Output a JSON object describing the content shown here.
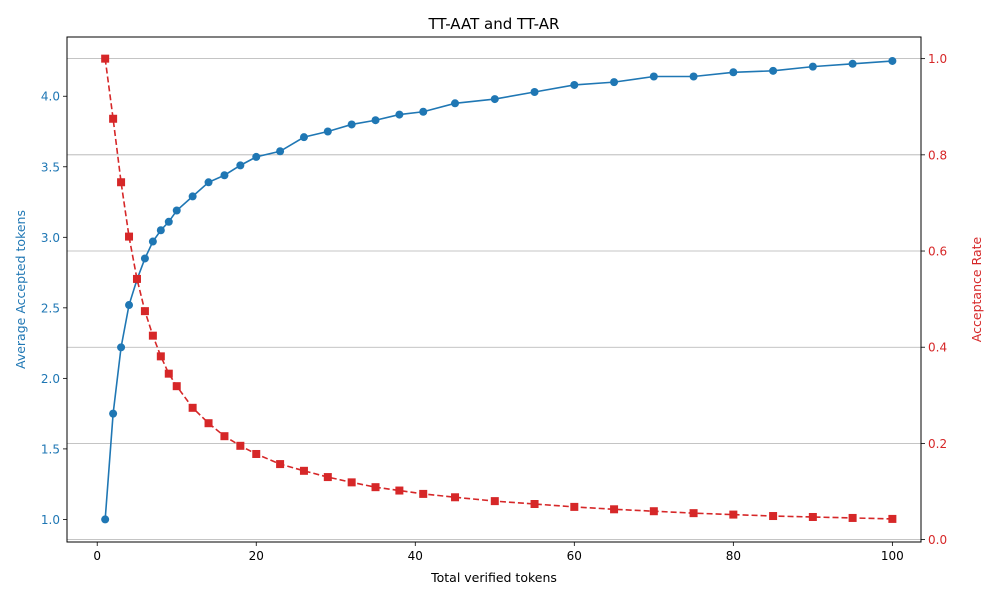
{
  "chart_data": {
    "type": "line",
    "title": "TT-AAT and TT-AR",
    "xlabel": "Total verified tokens",
    "x_ticks": [
      0,
      20,
      40,
      60,
      80,
      100
    ],
    "xlim": [
      -3.8,
      103.6
    ],
    "grid": "horizontal lines from right axis",
    "x": [
      1,
      2,
      3,
      4,
      5,
      6,
      7,
      8,
      9,
      10,
      12,
      14,
      16,
      18,
      20,
      23,
      26,
      29,
      32,
      35,
      38,
      41,
      45,
      50,
      55,
      60,
      65,
      70,
      75,
      80,
      85,
      90,
      95,
      100
    ],
    "series": [
      {
        "name": "",
        "axis": "left",
        "ylabel": "Average Accepted tokens",
        "color": "#1f77b4",
        "linestyle": "solid",
        "marker": "circle",
        "ylim": [
          0.84,
          4.42
        ],
        "y_ticks": [
          "1.0",
          "1.5",
          "2.0",
          "2.5",
          "3.0",
          "3.5",
          "4.0"
        ],
        "y_tick_values": [
          1.0,
          1.5,
          2.0,
          2.5,
          3.0,
          3.5,
          4.0
        ],
        "values": [
          1.0,
          1.75,
          2.22,
          2.52,
          2.7,
          2.85,
          2.97,
          3.05,
          3.11,
          3.19,
          3.29,
          3.39,
          3.44,
          3.51,
          3.57,
          3.61,
          3.71,
          3.75,
          3.8,
          3.83,
          3.87,
          3.89,
          3.95,
          3.98,
          4.03,
          4.08,
          4.1,
          4.14,
          4.14,
          4.17,
          4.18,
          4.21,
          4.23,
          4.25
        ]
      },
      {
        "name": "",
        "axis": "right",
        "ylabel": "Acceptance Rate",
        "color": "#d62728",
        "linestyle": "dashed",
        "marker": "square",
        "ylim": [
          -0.005,
          1.045
        ],
        "y_ticks": [
          "0.0",
          "0.2",
          "0.4",
          "0.6",
          "0.8",
          "1.0"
        ],
        "y_tick_values": [
          0.0,
          0.2,
          0.4,
          0.6,
          0.8,
          1.0
        ],
        "values": [
          1.0,
          0.875,
          0.743,
          0.63,
          0.542,
          0.475,
          0.424,
          0.381,
          0.345,
          0.319,
          0.274,
          0.242,
          0.215,
          0.195,
          0.178,
          0.157,
          0.143,
          0.13,
          0.119,
          0.109,
          0.102,
          0.095,
          0.088,
          0.08,
          0.074,
          0.068,
          0.063,
          0.059,
          0.055,
          0.052,
          0.049,
          0.047,
          0.045,
          0.043
        ]
      }
    ]
  }
}
